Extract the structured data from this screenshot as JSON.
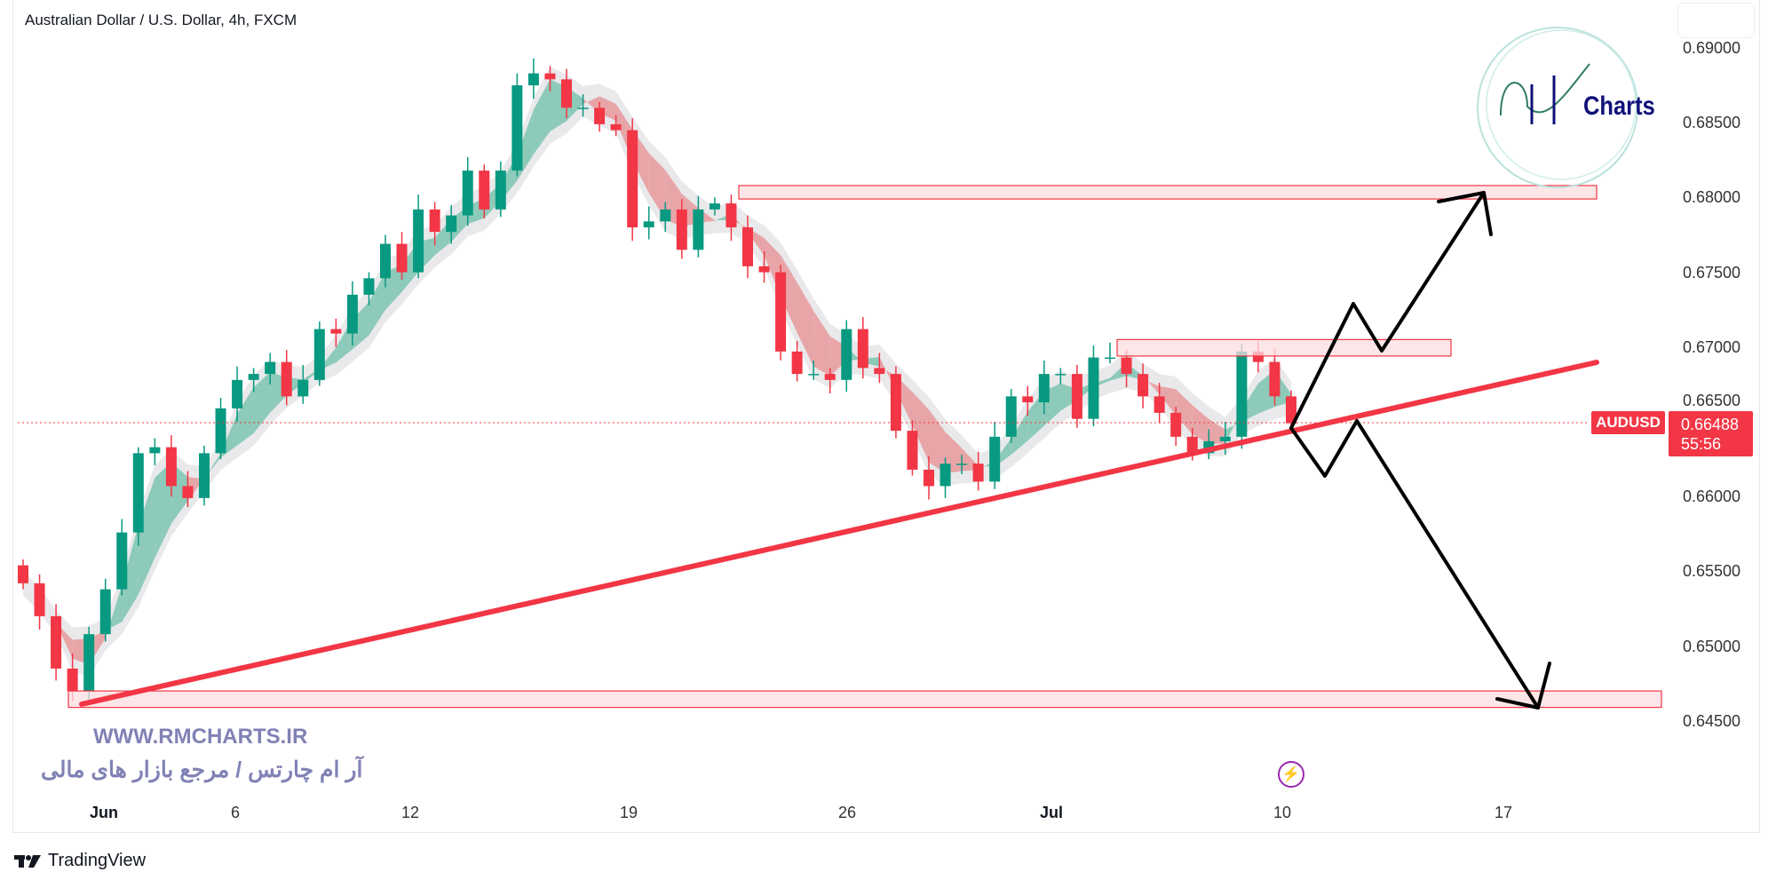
{
  "header": {
    "title": "Australian Dollar / U.S. Dollar, 4h, FXCM"
  },
  "price_axis": {
    "labels": [
      "0.69000",
      "0.68500",
      "0.68000",
      "0.67500",
      "0.67000",
      "0.66500",
      "0.66000",
      "0.65500",
      "0.65000",
      "0.64500"
    ]
  },
  "time_axis": {
    "labels": [
      {
        "text": "Jun",
        "bold": true
      },
      {
        "text": "6"
      },
      {
        "text": "12"
      },
      {
        "text": "19"
      },
      {
        "text": "26"
      },
      {
        "text": "Jul",
        "bold": true
      },
      {
        "text": "10"
      },
      {
        "text": "17"
      }
    ]
  },
  "last_price": {
    "symbol": "AUDUSD",
    "price": "0.66488",
    "countdown": "55:56",
    "color": "#f23645"
  },
  "watermark": {
    "url": "WWW.RMCHARTS.IR",
    "tagline": "آر ام چارتس / مرجع بازار های مالی",
    "logo_text": "Charts"
  },
  "footer": {
    "brand": "TradingView"
  },
  "colors": {
    "up": "#089981",
    "down": "#f23645",
    "zone_fill": "#fcdde0",
    "zone_border": "#f23645",
    "trendline": "#f23645",
    "arrows": "#000000"
  },
  "chart_data": {
    "type": "candlestick",
    "title": "Australian Dollar / U.S. Dollar, 4h, FXCM",
    "ylim": [
      0.6425,
      0.6915
    ],
    "grid": false,
    "closes": [
      0.6542,
      0.652,
      0.6485,
      0.647,
      0.6508,
      0.6538,
      0.6576,
      0.6629,
      0.6633,
      0.6607,
      0.6599,
      0.6629,
      0.6659,
      0.6678,
      0.6682,
      0.669,
      0.6667,
      0.6678,
      0.6712,
      0.6709,
      0.6735,
      0.6746,
      0.6769,
      0.675,
      0.6792,
      0.6777,
      0.6788,
      0.6818,
      0.6792,
      0.6818,
      0.6875,
      0.6883,
      0.6879,
      0.686,
      0.686,
      0.6849,
      0.6845,
      0.678,
      0.6784,
      0.6792,
      0.6765,
      0.6792,
      0.6796,
      0.678,
      0.6754,
      0.675,
      0.6697,
      0.6682,
      0.6682,
      0.6678,
      0.6712,
      0.6686,
      0.6682,
      0.6644,
      0.6618,
      0.6607,
      0.6622,
      0.6622,
      0.661,
      0.664,
      0.6667,
      0.6663,
      0.6682,
      0.6682,
      0.6652,
      0.6693,
      0.6693,
      0.6682,
      0.6667,
      0.6656,
      0.664,
      0.6629,
      0.6637,
      0.664,
      0.6697,
      0.669,
      0.6667,
      0.6649
    ],
    "zones": [
      {
        "name": "resistance-top",
        "from": 0.6799,
        "to": 0.6808
      },
      {
        "name": "resistance-mid",
        "from": 0.6694,
        "to": 0.6705
      },
      {
        "name": "support-bottom",
        "from": 0.6459,
        "to": 0.647
      }
    ],
    "trendline": {
      "from_price": 0.646,
      "to_price": 0.6689
    },
    "last_price": 0.66488
  }
}
